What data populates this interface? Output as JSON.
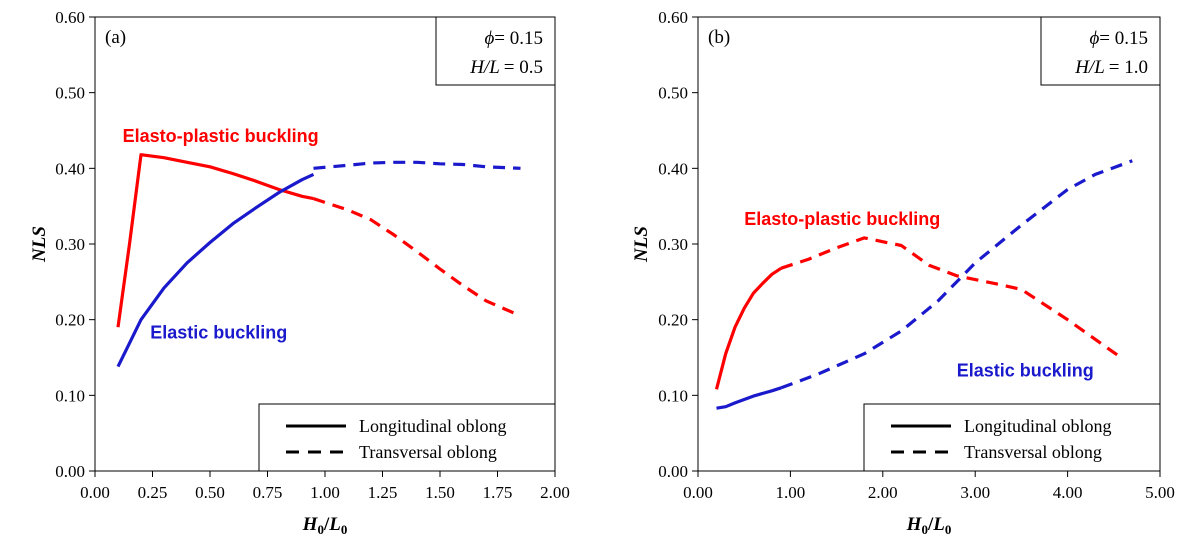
{
  "chart_data": [
    {
      "type": "line",
      "panel_label": "(a)",
      "info": {
        "phi_symbol": "ϕ",
        "phi_value": "= 0.15",
        "ratio_label": "H/L",
        "ratio_value": "= 0.5"
      },
      "xlabel": {
        "main": "H",
        "sub1": "0",
        "slash": "/",
        "main2": "L",
        "sub2": "0"
      },
      "ylabel": "NLS",
      "xlim": [
        0,
        2
      ],
      "ylim": [
        0,
        0.6
      ],
      "xticks": [
        "0.00",
        "0.25",
        "0.50",
        "0.75",
        "1.00",
        "1.25",
        "1.50",
        "1.75",
        "2.00"
      ],
      "xtick_values": [
        0,
        0.25,
        0.5,
        0.75,
        1.0,
        1.25,
        1.5,
        1.75,
        2.0
      ],
      "yticks": [
        "0.00",
        "0.10",
        "0.20",
        "0.30",
        "0.40",
        "0.50",
        "0.60"
      ],
      "ytick_values": [
        0,
        0.1,
        0.2,
        0.3,
        0.4,
        0.5,
        0.6
      ],
      "annotations": [
        {
          "text": "Elasto-plastic buckling",
          "color": "#ff0000",
          "x": 0.12,
          "y": 0.435
        },
        {
          "text": "Elastic  buckling",
          "color": "#1a1acc",
          "x": 0.24,
          "y": 0.175
        }
      ],
      "legend": {
        "position": "bottom-right",
        "solid_label": "Longitudinal oblong",
        "dashed_label": "Transversal oblong"
      },
      "series": [
        {
          "color": "#ff0000",
          "style": "solid",
          "x": [
            0.1,
            0.15,
            0.2,
            0.3,
            0.4,
            0.5,
            0.6,
            0.7,
            0.8,
            0.9,
            0.95
          ],
          "y": [
            0.19,
            0.3,
            0.418,
            0.414,
            0.408,
            0.402,
            0.393,
            0.383,
            0.372,
            0.363,
            0.36
          ]
        },
        {
          "color": "#ff0000",
          "style": "dashed",
          "x": [
            0.95,
            1.1,
            1.2,
            1.3,
            1.4,
            1.5,
            1.6,
            1.7,
            1.85
          ],
          "y": [
            0.36,
            0.345,
            0.332,
            0.312,
            0.29,
            0.267,
            0.245,
            0.225,
            0.205
          ]
        },
        {
          "color": "#1a1acc",
          "style": "solid",
          "x": [
            0.1,
            0.2,
            0.3,
            0.4,
            0.5,
            0.6,
            0.7,
            0.8,
            0.9,
            0.95
          ],
          "y": [
            0.138,
            0.2,
            0.242,
            0.275,
            0.302,
            0.327,
            0.348,
            0.368,
            0.385,
            0.392
          ]
        },
        {
          "color": "#1a1acc",
          "style": "dashed",
          "x": [
            0.95,
            1.1,
            1.2,
            1.3,
            1.4,
            1.5,
            1.6,
            1.7,
            1.85
          ],
          "y": [
            0.4,
            0.404,
            0.407,
            0.408,
            0.408,
            0.406,
            0.405,
            0.402,
            0.4
          ]
        }
      ]
    },
    {
      "type": "line",
      "panel_label": "(b)",
      "info": {
        "phi_symbol": "ϕ",
        "phi_value": "= 0.15",
        "ratio_label": "H/L",
        "ratio_value": "= 1.0"
      },
      "xlabel": {
        "main": "H",
        "sub1": "0",
        "slash": "/",
        "main2": "L",
        "sub2": "0"
      },
      "ylabel": "NLS",
      "xlim": [
        0,
        5
      ],
      "ylim": [
        0,
        0.6
      ],
      "xticks": [
        "0.00",
        "1.00",
        "2.00",
        "3.00",
        "4.00",
        "5.00"
      ],
      "xtick_values": [
        0,
        1,
        2,
        3,
        4,
        5
      ],
      "yticks": [
        "0.00",
        "0.10",
        "0.20",
        "0.30",
        "0.40",
        "0.50",
        "0.60"
      ],
      "ytick_values": [
        0,
        0.1,
        0.2,
        0.3,
        0.4,
        0.5,
        0.6
      ],
      "annotations": [
        {
          "text": "Elasto-plastic buckling",
          "color": "#ff0000",
          "x": 0.5,
          "y": 0.325
        },
        {
          "text": "Elastic  buckling",
          "color": "#1a1acc",
          "x": 2.8,
          "y": 0.125
        }
      ],
      "legend": {
        "position": "bottom-right",
        "solid_label": "Longitudinal oblong",
        "dashed_label": "Transversal oblong"
      },
      "series": [
        {
          "color": "#ff0000",
          "style": "solid",
          "x": [
            0.2,
            0.3,
            0.4,
            0.5,
            0.6,
            0.7,
            0.8,
            0.9
          ],
          "y": [
            0.108,
            0.155,
            0.19,
            0.215,
            0.235,
            0.248,
            0.26,
            0.268
          ]
        },
        {
          "color": "#ff0000",
          "style": "dashed",
          "x": [
            0.9,
            1.2,
            1.5,
            1.8,
            2.2,
            2.5,
            2.8,
            3.2,
            3.5,
            4.0,
            4.6
          ],
          "y": [
            0.268,
            0.28,
            0.295,
            0.308,
            0.298,
            0.272,
            0.258,
            0.248,
            0.24,
            0.2,
            0.148
          ]
        },
        {
          "color": "#1a1acc",
          "style": "solid",
          "x": [
            0.2,
            0.3,
            0.4,
            0.6,
            0.8,
            0.9
          ],
          "y": [
            0.083,
            0.085,
            0.09,
            0.099,
            0.106,
            0.11
          ]
        },
        {
          "color": "#1a1acc",
          "style": "dashed",
          "x": [
            0.9,
            1.3,
            1.8,
            2.2,
            2.6,
            3.0,
            3.5,
            4.0,
            4.3,
            4.7
          ],
          "y": [
            0.11,
            0.128,
            0.155,
            0.185,
            0.225,
            0.275,
            0.325,
            0.372,
            0.392,
            0.41
          ]
        }
      ]
    }
  ]
}
